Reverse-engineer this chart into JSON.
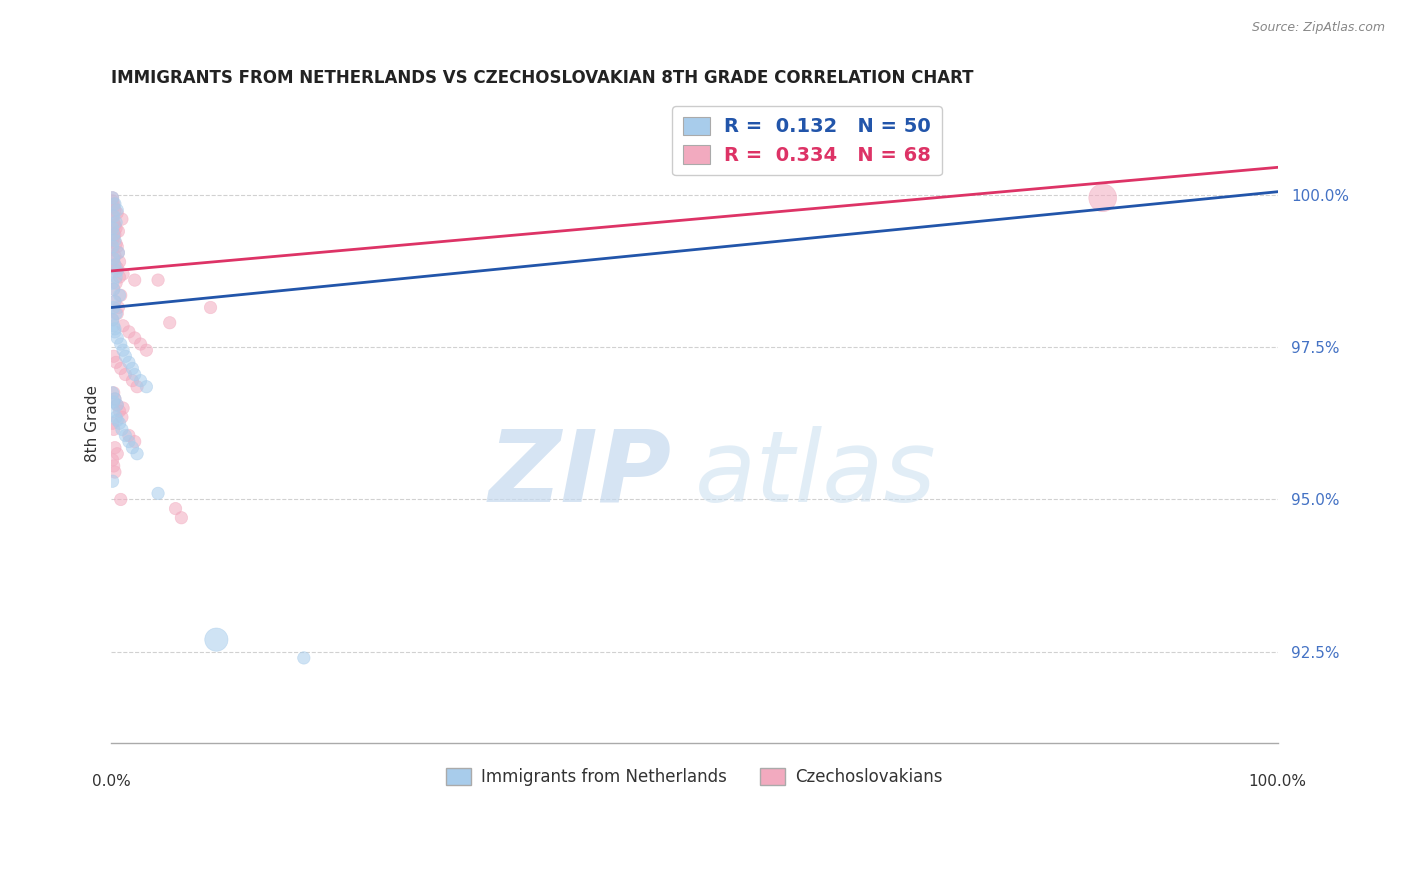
{
  "title": "IMMIGRANTS FROM NETHERLANDS VS CZECHOSLOVAKIAN 8TH GRADE CORRELATION CHART",
  "source": "Source: ZipAtlas.com",
  "ylabel": "8th Grade",
  "yticks": [
    92.5,
    95.0,
    97.5,
    100.0
  ],
  "ytick_labels": [
    "92.5%",
    "95.0%",
    "97.5%",
    "100.0%"
  ],
  "legend_label1": "Immigrants from Netherlands",
  "legend_label2": "Czechoslovakians",
  "r1": 0.132,
  "n1": 50,
  "r2": 0.334,
  "n2": 68,
  "blue_color": "#A8CCEB",
  "pink_color": "#F2AABF",
  "blue_line_color": "#2255AA",
  "pink_line_color": "#DD3366",
  "xlim": [
    0.0,
    1.0
  ],
  "ylim": [
    91.0,
    101.5
  ],
  "blue_line_x0": 0.0,
  "blue_line_y0": 98.15,
  "blue_line_x1": 1.0,
  "blue_line_y1": 100.05,
  "pink_line_x0": 0.0,
  "pink_line_y0": 98.75,
  "pink_line_x1": 1.0,
  "pink_line_y1": 100.45,
  "blue_x": [
    0.001,
    0.003,
    0.005,
    0.002,
    0.004,
    0.001,
    0.002,
    0.003,
    0.001,
    0.006,
    0.002,
    0.003,
    0.005,
    0.004,
    0.001,
    0.002,
    0.007,
    0.003,
    0.002,
    0.004,
    0.001,
    0.002,
    0.003,
    0.005,
    0.008,
    0.01,
    0.012,
    0.015,
    0.018,
    0.02,
    0.025,
    0.03,
    0.001,
    0.003,
    0.005,
    0.002,
    0.004,
    0.007,
    0.009,
    0.012,
    0.015,
    0.018,
    0.022,
    0.001,
    0.002,
    0.003,
    0.005,
    0.04,
    0.09,
    0.165
  ],
  "blue_y": [
    99.95,
    99.85,
    99.75,
    99.65,
    99.55,
    99.45,
    99.35,
    99.25,
    99.15,
    99.05,
    98.95,
    98.85,
    98.75,
    98.65,
    98.55,
    98.45,
    98.35,
    98.25,
    98.15,
    98.05,
    97.95,
    97.85,
    97.75,
    97.65,
    97.55,
    97.45,
    97.35,
    97.25,
    97.15,
    97.05,
    96.95,
    96.85,
    96.75,
    96.65,
    96.55,
    96.45,
    96.35,
    96.25,
    96.15,
    96.05,
    95.95,
    95.85,
    95.75,
    95.3,
    96.6,
    97.8,
    96.3,
    95.1,
    92.7,
    92.4
  ],
  "blue_sizes": [
    80,
    80,
    80,
    80,
    80,
    80,
    80,
    80,
    80,
    80,
    80,
    80,
    80,
    80,
    80,
    80,
    80,
    80,
    80,
    80,
    80,
    80,
    80,
    80,
    80,
    80,
    80,
    80,
    80,
    80,
    80,
    80,
    80,
    80,
    80,
    80,
    80,
    80,
    80,
    80,
    80,
    80,
    80,
    80,
    80,
    80,
    80,
    80,
    280,
    80
  ],
  "pink_x": [
    0.001,
    0.002,
    0.003,
    0.001,
    0.002,
    0.004,
    0.003,
    0.001,
    0.005,
    0.006,
    0.002,
    0.003,
    0.001,
    0.007,
    0.004,
    0.002,
    0.008,
    0.003,
    0.006,
    0.005,
    0.001,
    0.01,
    0.015,
    0.02,
    0.025,
    0.03,
    0.002,
    0.004,
    0.008,
    0.012,
    0.018,
    0.022,
    0.002,
    0.003,
    0.005,
    0.007,
    0.009,
    0.001,
    0.002,
    0.015,
    0.02,
    0.003,
    0.005,
    0.001,
    0.002,
    0.003,
    0.04,
    0.05,
    0.01,
    0.085,
    0.001,
    0.002,
    0.005,
    0.009,
    0.003,
    0.006,
    0.002,
    0.004,
    0.001,
    0.003,
    0.007,
    0.005,
    0.01,
    0.02,
    0.008,
    0.055,
    0.06,
    0.85
  ],
  "pink_y": [
    99.95,
    99.85,
    99.75,
    99.65,
    99.55,
    99.45,
    99.35,
    99.25,
    99.15,
    99.05,
    98.95,
    98.85,
    98.75,
    98.65,
    98.55,
    98.45,
    98.35,
    98.25,
    98.15,
    98.05,
    97.95,
    97.85,
    97.75,
    97.65,
    97.55,
    97.45,
    97.35,
    97.25,
    97.15,
    97.05,
    96.95,
    96.85,
    96.75,
    96.65,
    96.55,
    96.45,
    96.35,
    96.25,
    96.15,
    96.05,
    95.95,
    95.85,
    95.75,
    95.65,
    95.55,
    95.45,
    98.6,
    97.9,
    96.5,
    98.15,
    99.9,
    99.8,
    99.7,
    99.6,
    99.5,
    99.4,
    99.3,
    99.2,
    99.1,
    99.0,
    98.9,
    98.8,
    98.7,
    98.6,
    95.0,
    94.85,
    94.7,
    99.95
  ],
  "pink_sizes": [
    80,
    80,
    80,
    80,
    80,
    80,
    80,
    80,
    80,
    80,
    80,
    80,
    80,
    80,
    80,
    80,
    80,
    80,
    80,
    80,
    80,
    80,
    80,
    80,
    80,
    80,
    80,
    80,
    80,
    80,
    80,
    80,
    80,
    80,
    80,
    80,
    80,
    80,
    80,
    80,
    80,
    80,
    80,
    80,
    80,
    80,
    80,
    80,
    80,
    80,
    80,
    80,
    80,
    80,
    80,
    80,
    80,
    80,
    80,
    80,
    80,
    80,
    80,
    80,
    80,
    80,
    80,
    400
  ]
}
